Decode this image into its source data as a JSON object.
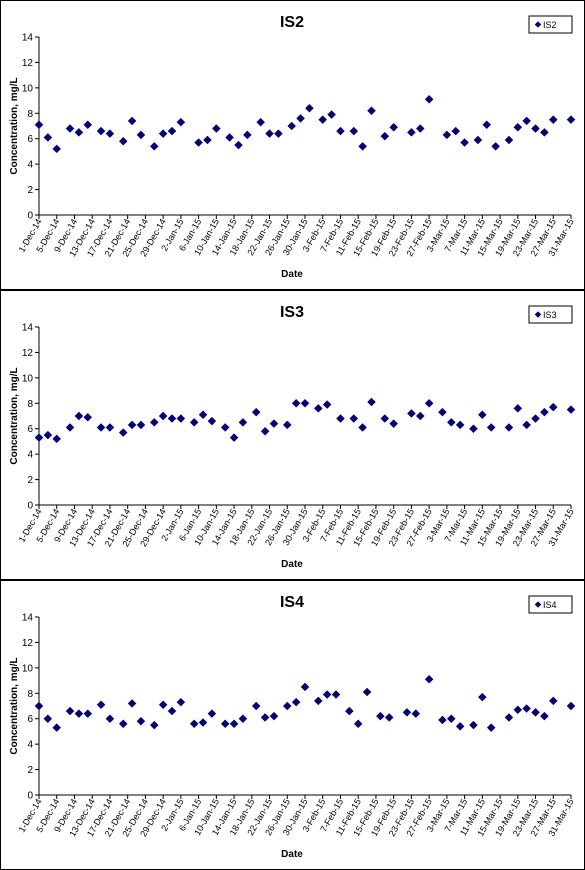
{
  "marker_color": "#000080",
  "chart_data": [
    {
      "type": "scatter",
      "title": "IS2",
      "xlabel": "Date",
      "ylabel": "Concentration, mg/L",
      "ylim": [
        0,
        14
      ],
      "yticks": [
        0,
        2,
        4,
        6,
        8,
        10,
        12,
        14
      ],
      "xlim": [
        "1-Dec-14",
        "31-Mar-15"
      ],
      "xticks": [
        "1-Dec-14",
        "5-Dec-14",
        "9-Dec-14",
        "13-Dec-14",
        "17-Dec-14",
        "21-Dec-14",
        "25-Dec-14",
        "29-Dec-14",
        "2-Jan-15",
        "6-Jan-15",
        "10-Jan-15",
        "14-Jan-15",
        "18-Jan-15",
        "22-Jan-15",
        "26-Jan-15",
        "30-Jan-15",
        "3-Feb-15",
        "7-Feb-15",
        "11-Feb-15",
        "15-Feb-15",
        "19-Feb-15",
        "23-Feb-15",
        "27-Feb-15",
        "3-Mar-15",
        "7-Mar-15",
        "11-Mar-15",
        "15-Mar-15",
        "19-Mar-15",
        "23-Mar-15",
        "27-Mar-15",
        "31-Mar-15"
      ],
      "legend": "top-right",
      "grid": false,
      "series": [
        {
          "name": "IS2",
          "marker": "diamond",
          "points": [
            [
              "1-Dec-14",
              7.1
            ],
            [
              "3-Dec-14",
              6.1
            ],
            [
              "5-Dec-14",
              5.2
            ],
            [
              "8-Dec-14",
              6.8
            ],
            [
              "10-Dec-14",
              6.5
            ],
            [
              "12-Dec-14",
              7.1
            ],
            [
              "15-Dec-14",
              6.6
            ],
            [
              "17-Dec-14",
              6.4
            ],
            [
              "20-Dec-14",
              5.8
            ],
            [
              "22-Dec-14",
              7.4
            ],
            [
              "24-Dec-14",
              6.3
            ],
            [
              "27-Dec-14",
              5.4
            ],
            [
              "29-Dec-14",
              6.4
            ],
            [
              "31-Dec-14",
              6.6
            ],
            [
              "2-Jan-15",
              7.3
            ],
            [
              "6-Jan-15",
              5.7
            ],
            [
              "8-Jan-15",
              5.9
            ],
            [
              "10-Jan-15",
              6.8
            ],
            [
              "13-Jan-15",
              6.1
            ],
            [
              "15-Jan-15",
              5.5
            ],
            [
              "17-Jan-15",
              6.3
            ],
            [
              "20-Jan-15",
              7.3
            ],
            [
              "22-Jan-15",
              6.4
            ],
            [
              "24-Jan-15",
              6.4
            ],
            [
              "27-Jan-15",
              7.0
            ],
            [
              "29-Jan-15",
              7.6
            ],
            [
              "31-Jan-15",
              8.4
            ],
            [
              "3-Feb-15",
              7.5
            ],
            [
              "5-Feb-15",
              7.9
            ],
            [
              "7-Feb-15",
              6.6
            ],
            [
              "10-Feb-15",
              6.6
            ],
            [
              "12-Feb-15",
              5.4
            ],
            [
              "14-Feb-15",
              8.2
            ],
            [
              "17-Feb-15",
              6.2
            ],
            [
              "19-Feb-15",
              6.9
            ],
            [
              "23-Feb-15",
              6.5
            ],
            [
              "25-Feb-15",
              6.8
            ],
            [
              "27-Feb-15",
              9.1
            ],
            [
              "3-Mar-15",
              6.3
            ],
            [
              "5-Mar-15",
              6.6
            ],
            [
              "7-Mar-15",
              5.7
            ],
            [
              "10-Mar-15",
              5.9
            ],
            [
              "12-Mar-15",
              7.1
            ],
            [
              "14-Mar-15",
              5.4
            ],
            [
              "17-Mar-15",
              5.9
            ],
            [
              "19-Mar-15",
              6.9
            ],
            [
              "21-Mar-15",
              7.4
            ],
            [
              "23-Mar-15",
              6.8
            ],
            [
              "25-Mar-15",
              6.5
            ],
            [
              "27-Mar-15",
              7.5
            ],
            [
              "31-Mar-15",
              7.5
            ]
          ]
        }
      ]
    },
    {
      "type": "scatter",
      "title": "IS3",
      "xlabel": "Date",
      "ylabel": "Concentration, mg/L",
      "ylim": [
        0,
        14
      ],
      "yticks": [
        0,
        2,
        4,
        6,
        8,
        10,
        12,
        14
      ],
      "xlim": [
        "1-Dec-14",
        "31-Mar-15"
      ],
      "xticks": [
        "1-Dec-14",
        "5-Dec-14",
        "9-Dec-14",
        "13-Dec-14",
        "17-Dec-14",
        "21-Dec-14",
        "25-Dec-14",
        "29-Dec-14",
        "2-Jan-15",
        "6-Jan-15",
        "10-Jan-15",
        "14-Jan-15",
        "18-Jan-15",
        "22-Jan-15",
        "26-Jan-15",
        "30-Jan-15",
        "3-Feb-15",
        "7-Feb-15",
        "11-Feb-15",
        "15-Feb-15",
        "19-Feb-15",
        "23-Feb-15",
        "27-Feb-15",
        "3-Mar-15",
        "7-Mar-15",
        "11-Mar-15",
        "15-Mar-15",
        "19-Mar-15",
        "23-Mar-15",
        "27-Mar-15",
        "31-Mar-15"
      ],
      "legend": "top-right",
      "grid": false,
      "series": [
        {
          "name": "IS3",
          "marker": "diamond",
          "points": [
            [
              "1-Dec-14",
              5.3
            ],
            [
              "3-Dec-14",
              5.5
            ],
            [
              "5-Dec-14",
              5.2
            ],
            [
              "8-Dec-14",
              6.1
            ],
            [
              "10-Dec-14",
              7.0
            ],
            [
              "12-Dec-14",
              6.9
            ],
            [
              "15-Dec-14",
              6.1
            ],
            [
              "17-Dec-14",
              6.1
            ],
            [
              "20-Dec-14",
              5.7
            ],
            [
              "22-Dec-14",
              6.3
            ],
            [
              "24-Dec-14",
              6.3
            ],
            [
              "27-Dec-14",
              6.5
            ],
            [
              "29-Dec-14",
              7.0
            ],
            [
              "31-Dec-14",
              6.8
            ],
            [
              "2-Jan-15",
              6.8
            ],
            [
              "5-Jan-15",
              6.5
            ],
            [
              "7-Jan-15",
              7.1
            ],
            [
              "9-Jan-15",
              6.6
            ],
            [
              "12-Jan-15",
              6.1
            ],
            [
              "14-Jan-15",
              5.3
            ],
            [
              "16-Jan-15",
              6.5
            ],
            [
              "19-Jan-15",
              7.3
            ],
            [
              "21-Jan-15",
              5.8
            ],
            [
              "23-Jan-15",
              6.4
            ],
            [
              "26-Jan-15",
              6.3
            ],
            [
              "28-Jan-15",
              8.0
            ],
            [
              "30-Jan-15",
              8.0
            ],
            [
              "2-Feb-15",
              7.6
            ],
            [
              "4-Feb-15",
              7.9
            ],
            [
              "7-Feb-15",
              6.8
            ],
            [
              "10-Feb-15",
              6.8
            ],
            [
              "12-Feb-15",
              6.1
            ],
            [
              "14-Feb-15",
              8.1
            ],
            [
              "17-Feb-15",
              6.8
            ],
            [
              "19-Feb-15",
              6.4
            ],
            [
              "23-Feb-15",
              7.2
            ],
            [
              "25-Feb-15",
              7.0
            ],
            [
              "27-Feb-15",
              8.0
            ],
            [
              "2-Mar-15",
              7.3
            ],
            [
              "4-Mar-15",
              6.5
            ],
            [
              "6-Mar-15",
              6.3
            ],
            [
              "9-Mar-15",
              6.0
            ],
            [
              "11-Mar-15",
              7.1
            ],
            [
              "13-Mar-15",
              6.1
            ],
            [
              "17-Mar-15",
              6.1
            ],
            [
              "19-Mar-15",
              7.6
            ],
            [
              "21-Mar-15",
              6.3
            ],
            [
              "23-Mar-15",
              6.8
            ],
            [
              "25-Mar-15",
              7.3
            ],
            [
              "27-Mar-15",
              7.7
            ],
            [
              "31-Mar-15",
              7.5
            ]
          ]
        }
      ]
    },
    {
      "type": "scatter",
      "title": "IS4",
      "xlabel": "Date",
      "ylabel": "Concentration, mg/L",
      "ylim": [
        0,
        14
      ],
      "yticks": [
        0,
        2,
        4,
        6,
        8,
        10,
        12,
        14
      ],
      "xlim": [
        "1-Dec-14",
        "31-Mar-15"
      ],
      "xticks": [
        "1-Dec-14",
        "5-Dec-14",
        "9-Dec-14",
        "13-Dec-14",
        "17-Dec-14",
        "21-Dec-14",
        "25-Dec-14",
        "29-Dec-14",
        "2-Jan-15",
        "6-Jan-15",
        "10-Jan-15",
        "14-Jan-15",
        "18-Jan-15",
        "22-Jan-15",
        "26-Jan-15",
        "30-Jan-15",
        "3-Feb-15",
        "7-Feb-15",
        "11-Feb-15",
        "15-Feb-15",
        "19-Feb-15",
        "23-Feb-15",
        "27-Feb-15",
        "3-Mar-15",
        "7-Mar-15",
        "11-Mar-15",
        "15-Mar-15",
        "19-Mar-15",
        "23-Mar-15",
        "27-Mar-15",
        "31-Mar-15"
      ],
      "legend": "top-right",
      "grid": false,
      "series": [
        {
          "name": "IS4",
          "marker": "diamond",
          "points": [
            [
              "1-Dec-14",
              7.0
            ],
            [
              "3-Dec-14",
              6.0
            ],
            [
              "5-Dec-14",
              5.3
            ],
            [
              "8-Dec-14",
              6.6
            ],
            [
              "10-Dec-14",
              6.4
            ],
            [
              "12-Dec-14",
              6.4
            ],
            [
              "15-Dec-14",
              7.1
            ],
            [
              "17-Dec-14",
              6.0
            ],
            [
              "20-Dec-14",
              5.6
            ],
            [
              "22-Dec-14",
              7.2
            ],
            [
              "24-Dec-14",
              5.8
            ],
            [
              "27-Dec-14",
              5.5
            ],
            [
              "29-Dec-14",
              7.1
            ],
            [
              "31-Dec-14",
              6.6
            ],
            [
              "2-Jan-15",
              7.3
            ],
            [
              "5-Jan-15",
              5.6
            ],
            [
              "7-Jan-15",
              5.7
            ],
            [
              "9-Jan-15",
              6.4
            ],
            [
              "12-Jan-15",
              5.6
            ],
            [
              "14-Jan-15",
              5.6
            ],
            [
              "16-Jan-15",
              6.0
            ],
            [
              "19-Jan-15",
              7.0
            ],
            [
              "21-Jan-15",
              6.1
            ],
            [
              "23-Jan-15",
              6.2
            ],
            [
              "26-Jan-15",
              7.0
            ],
            [
              "28-Jan-15",
              7.3
            ],
            [
              "30-Jan-15",
              8.5
            ],
            [
              "2-Feb-15",
              7.4
            ],
            [
              "4-Feb-15",
              7.9
            ],
            [
              "6-Feb-15",
              7.9
            ],
            [
              "9-Feb-15",
              6.6
            ],
            [
              "11-Feb-15",
              5.6
            ],
            [
              "13-Feb-15",
              8.1
            ],
            [
              "16-Feb-15",
              6.2
            ],
            [
              "18-Feb-15",
              6.1
            ],
            [
              "22-Feb-15",
              6.5
            ],
            [
              "24-Feb-15",
              6.4
            ],
            [
              "27-Feb-15",
              9.1
            ],
            [
              "2-Mar-15",
              5.9
            ],
            [
              "4-Mar-15",
              6.0
            ],
            [
              "6-Mar-15",
              5.4
            ],
            [
              "9-Mar-15",
              5.5
            ],
            [
              "11-Mar-15",
              7.7
            ],
            [
              "13-Mar-15",
              5.3
            ],
            [
              "17-Mar-15",
              6.1
            ],
            [
              "19-Mar-15",
              6.7
            ],
            [
              "21-Mar-15",
              6.8
            ],
            [
              "23-Mar-15",
              6.5
            ],
            [
              "25-Mar-15",
              6.2
            ],
            [
              "27-Mar-15",
              7.4
            ],
            [
              "31-Mar-15",
              7.0
            ]
          ]
        }
      ]
    }
  ]
}
